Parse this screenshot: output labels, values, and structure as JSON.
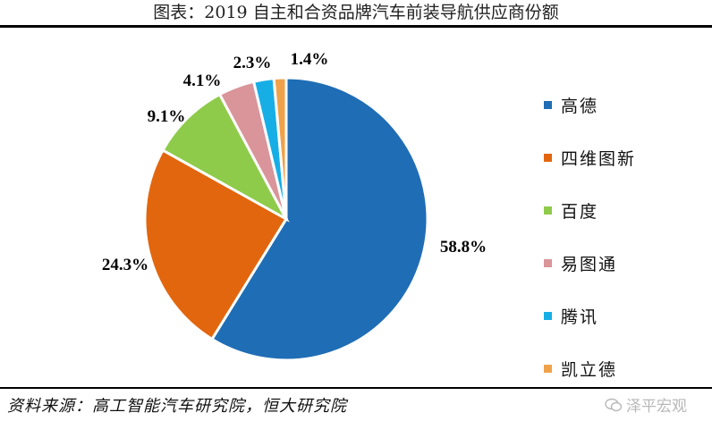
{
  "header": {
    "title": "图表：2019 自主和合资品牌汽车前装导航供应商份额"
  },
  "chart_data": {
    "type": "pie",
    "title": "图表：2019 自主和合资品牌汽车前装导航供应商份额",
    "series": [
      {
        "name": "高德",
        "value": 58.8,
        "label": "58.8%",
        "color": "#1f6db5"
      },
      {
        "name": "四维图新",
        "value": 24.3,
        "label": "24.3%",
        "color": "#e2660e"
      },
      {
        "name": "百度",
        "value": 9.1,
        "label": "9.1%",
        "color": "#8ecb4a"
      },
      {
        "name": "易图通",
        "value": 4.1,
        "label": "4.1%",
        "color": "#d9959a"
      },
      {
        "name": "腾讯",
        "value": 2.3,
        "label": "2.3%",
        "color": "#17aee6"
      },
      {
        "name": "凯立德",
        "value": 1.4,
        "label": "1.4%",
        "color": "#f0a24a"
      }
    ],
    "legend_position": "right"
  },
  "footer": {
    "source": "资料来源：高工智能汽车研究院，恒大研究院",
    "watermark": "泽平宏观"
  },
  "icons": {
    "watermark_icon": "wechat-icon"
  }
}
